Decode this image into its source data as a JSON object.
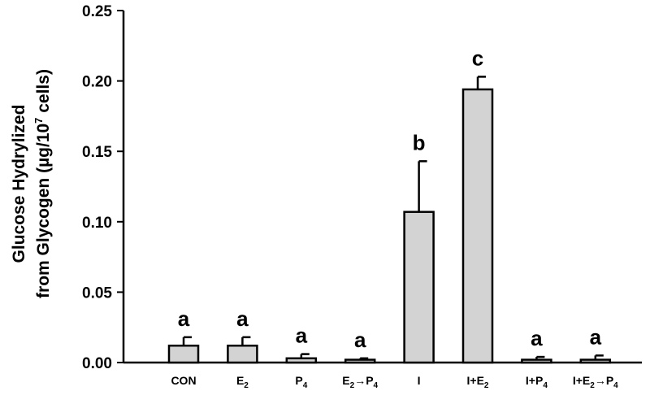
{
  "chart_data": {
    "type": "bar",
    "title": "",
    "ylabel_line1": "Glucose Hydrylized",
    "ylabel_line2_pre": "from Glycogen (µg/10",
    "ylabel_line2_sup": "7",
    "ylabel_line2_post": " cells)",
    "ylim": [
      0,
      0.25
    ],
    "yticks": [
      "0.00",
      "0.05",
      "0.10",
      "0.15",
      "0.20",
      "0.25"
    ],
    "bar_color": "#d3d3d3",
    "categories": [
      {
        "main": "CON",
        "sub": "",
        "main2": "",
        "sub2": ""
      },
      {
        "main": "E",
        "sub": "2",
        "main2": "",
        "sub2": ""
      },
      {
        "main": "P",
        "sub": "4",
        "main2": "",
        "sub2": ""
      },
      {
        "main": "E",
        "sub": "2",
        "main2": "→P",
        "sub2": "4"
      },
      {
        "main": "I",
        "sub": "",
        "main2": "",
        "sub2": ""
      },
      {
        "main": "I+E",
        "sub": "2",
        "main2": "",
        "sub2": ""
      },
      {
        "main": "I+P",
        "sub": "4",
        "main2": "",
        "sub2": ""
      },
      {
        "main": "I+E",
        "sub": "2",
        "main2": "→P",
        "sub2": "4"
      }
    ],
    "values": [
      0.012,
      0.012,
      0.003,
      0.002,
      0.107,
      0.194,
      0.002,
      0.002
    ],
    "errors": [
      0.006,
      0.006,
      0.003,
      0.001,
      0.036,
      0.009,
      0.002,
      0.003
    ],
    "significance": [
      "a",
      "a",
      "a",
      "a",
      "b",
      "c",
      "a",
      "a"
    ]
  }
}
